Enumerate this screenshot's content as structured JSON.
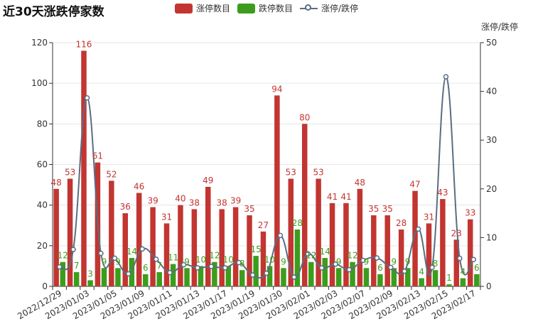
{
  "title": "近30天涨跌停家数",
  "legend": {
    "items": [
      {
        "label": "涨停数目",
        "color": "#c23531"
      },
      {
        "label": "跌停数目",
        "color": "#3c9d1c"
      },
      {
        "label": "涨停/跌停",
        "color": "#5a6e82"
      }
    ]
  },
  "chart_data": {
    "type": "bar",
    "title": "近30天涨跌停家数",
    "categories": [
      "2022/12/29",
      "2022/12/30",
      "2023/01/03",
      "2023/01/04",
      "2023/01/05",
      "2023/01/06",
      "2023/01/09",
      "2023/01/10",
      "2023/01/11",
      "2023/01/12",
      "2023/01/13",
      "2023/01/16",
      "2023/01/17",
      "2023/01/18",
      "2023/01/19",
      "2023/01/20",
      "2023/01/30",
      "2023/01/31",
      "2023/02/01",
      "2023/02/02",
      "2023/02/03",
      "2023/02/06",
      "2023/02/07",
      "2023/02/08",
      "2023/02/09",
      "2023/02/10",
      "2023/02/13",
      "2023/02/14",
      "2023/02/15",
      "2023/02/16",
      "2023/02/17"
    ],
    "visible_tick_labels": [
      "2022/12/29",
      "2023/01/03",
      "2023/01/05",
      "2023/01/09",
      "2023/01/11",
      "2023/01/13",
      "2023/01/17",
      "2023/01/19",
      "2023/01/30",
      "2023/02/01",
      "2023/02/03",
      "2023/02/07",
      "2023/02/09",
      "2023/02/13",
      "2023/02/15",
      "2023/02/17"
    ],
    "series": [
      {
        "name": "涨停数目",
        "type": "bar",
        "color": "#c23531",
        "values": [
          48,
          53,
          116,
          61,
          52,
          36,
          46,
          39,
          31,
          40,
          38,
          49,
          38,
          39,
          35,
          27,
          94,
          53,
          80,
          53,
          41,
          41,
          48,
          35,
          35,
          28,
          47,
          31,
          43,
          23,
          33
        ]
      },
      {
        "name": "跌停数目",
        "type": "bar",
        "color": "#3c9d1c",
        "values": [
          12,
          7,
          3,
          9,
          9,
          14,
          6,
          7,
          11,
          9,
          10,
          12,
          10,
          8,
          15,
          10,
          9,
          28,
          12,
          14,
          9,
          12,
          9,
          6,
          9,
          9,
          4,
          8,
          1,
          4,
          6
        ]
      },
      {
        "name": "涨停/跌停",
        "type": "line",
        "color": "#5a6e82",
        "axis": "right",
        "smooth": true,
        "values": [
          4,
          7.57,
          38.67,
          6.78,
          5.78,
          2.57,
          7.67,
          5.57,
          2.82,
          4.44,
          3.8,
          4.08,
          3.8,
          4.88,
          2.33,
          2.7,
          10.44,
          1.89,
          6.67,
          3.79,
          4.56,
          3.42,
          5.33,
          5.83,
          3.89,
          3.11,
          11.75,
          3.88,
          43,
          5.75,
          5.5
        ]
      }
    ],
    "y_left": {
      "min": 0,
      "max": 120,
      "ticks": [
        0,
        20,
        40,
        60,
        80,
        100,
        120
      ]
    },
    "y_right": {
      "min": 0,
      "max": 50,
      "ticks": [
        0,
        10,
        20,
        30,
        40,
        50
      ],
      "label": "涨停/跌停"
    },
    "grid": "horizontal",
    "legend_position": "top-center"
  }
}
